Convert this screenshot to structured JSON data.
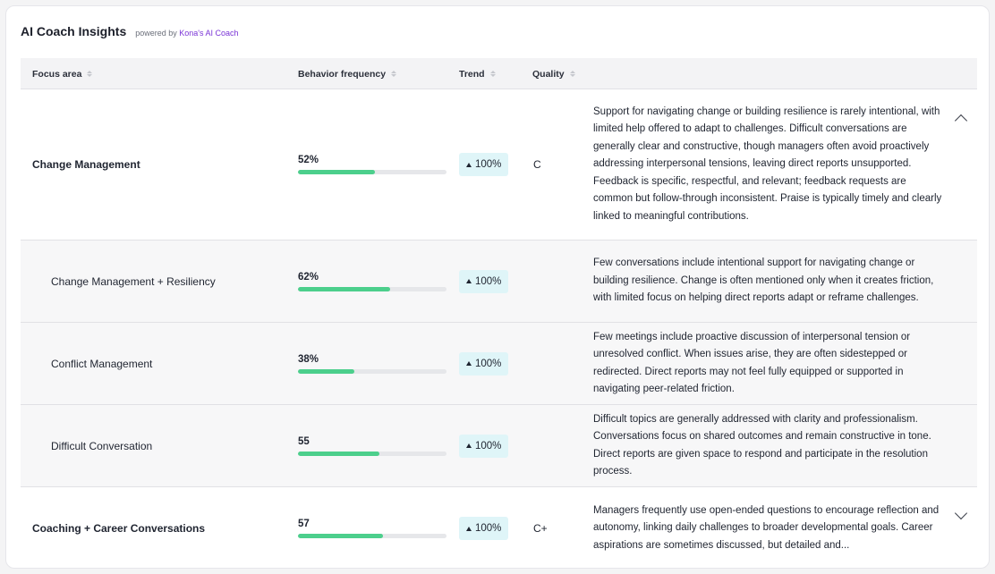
{
  "header": {
    "title": "AI Coach Insights",
    "powered_prefix": "powered by",
    "powered_brand": "Kona's AI Coach"
  },
  "columns": {
    "focus": "Focus area",
    "frequency": "Behavior frequency",
    "trend": "Trend",
    "quality": "Quality"
  },
  "rows": [
    {
      "focus": "Change Management",
      "frequency": "52%",
      "frequency_fill": 0.52,
      "trend": "100%",
      "quality": "C",
      "description": "Support for navigating change or building resilience is rarely intentional, with limited help offered to adapt to challenges. Difficult conversations are generally clear and constructive, though managers often avoid proactively addressing interpersonal tensions, leaving direct reports unsupported. Feedback is specific, respectful, and relevant; feedback requests are common but follow-through inconsistent. Praise is typically timely and clearly linked to meaningful contributions.",
      "chevron": "chevron-up-icon"
    },
    {
      "focus": "Change Management + Resiliency",
      "frequency": "62%",
      "frequency_fill": 0.62,
      "trend": "100%",
      "quality": "",
      "description": "Few conversations include intentional support for navigating change or building resilience. Change is often mentioned only when it creates friction, with limited focus on helping direct reports adapt or reframe challenges."
    },
    {
      "focus": "Conflict Management",
      "frequency": "38%",
      "frequency_fill": 0.38,
      "trend": "100%",
      "quality": "",
      "description": "Few meetings include proactive discussion of interpersonal tension or unresolved conflict. When issues arise, they are often sidestepped or redirected. Direct reports may not feel fully equipped or supported in navigating peer-related friction."
    },
    {
      "focus": "Difficult Conversation",
      "frequency": "55",
      "frequency_fill": 0.55,
      "trend": "100%",
      "quality": "",
      "description": "Difficult topics are generally addressed with clarity and professionalism. Conversations focus on shared outcomes and remain constructive in tone. Direct reports are given space to respond and participate in the resolution process."
    },
    {
      "focus": "Coaching + Career Conversations",
      "frequency": "57",
      "frequency_fill": 0.57,
      "trend": "100%",
      "quality": "C+",
      "description": "Managers frequently use open-ended questions to encourage reflection and autonomy, linking daily challenges to broader developmental goals. Career aspirations are sometimes discussed, but detailed and...",
      "chevron": "chevron-down-icon"
    }
  ],
  "colors": {
    "accent_bar": "#4ccf8c",
    "trend_badge_bg": "#dff5f8",
    "brand_purple": "#7a34d6"
  }
}
